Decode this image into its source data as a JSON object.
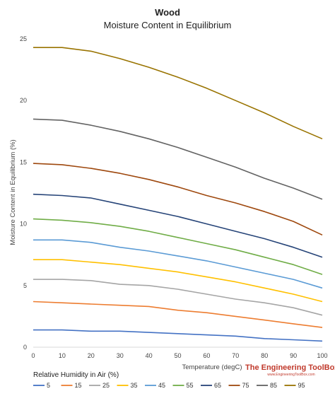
{
  "chart_data": {
    "type": "line",
    "title": "Wood",
    "subtitle": "Moisture Content in Equilibrium",
    "xlabel": "Temperature (degC)",
    "ylabel": "Moisture Content in Equilibrium (%)",
    "xlim": [
      0,
      100
    ],
    "ylim": [
      0,
      25
    ],
    "xticks": [
      0,
      10,
      20,
      30,
      40,
      50,
      60,
      70,
      80,
      90,
      100
    ],
    "yticks": [
      0,
      5,
      10,
      15,
      20,
      25
    ],
    "grid": false,
    "legend_title": "Relative Humidity in Air (%)",
    "legend_position": "bottom",
    "x": [
      0,
      10,
      20,
      30,
      40,
      50,
      60,
      70,
      80,
      90,
      100
    ],
    "series": [
      {
        "name": "5",
        "color": "#4472c4",
        "values": [
          1.4,
          1.4,
          1.3,
          1.3,
          1.2,
          1.1,
          1.0,
          0.9,
          0.7,
          0.6,
          0.5
        ]
      },
      {
        "name": "15",
        "color": "#ed7d31",
        "values": [
          3.7,
          3.6,
          3.5,
          3.4,
          3.3,
          3.0,
          2.8,
          2.5,
          2.2,
          1.9,
          1.6
        ]
      },
      {
        "name": "25",
        "color": "#a5a5a5",
        "values": [
          5.5,
          5.5,
          5.4,
          5.1,
          5.0,
          4.7,
          4.3,
          3.9,
          3.6,
          3.2,
          2.6
        ]
      },
      {
        "name": "35",
        "color": "#ffc000",
        "values": [
          7.1,
          7.1,
          6.9,
          6.7,
          6.4,
          6.1,
          5.7,
          5.3,
          4.8,
          4.3,
          3.7
        ]
      },
      {
        "name": "45",
        "color": "#5b9bd5",
        "values": [
          8.7,
          8.7,
          8.5,
          8.1,
          7.8,
          7.4,
          7.0,
          6.5,
          6.0,
          5.5,
          4.8
        ]
      },
      {
        "name": "55",
        "color": "#70ad47",
        "values": [
          10.4,
          10.3,
          10.1,
          9.8,
          9.4,
          8.9,
          8.4,
          7.9,
          7.3,
          6.7,
          5.9
        ]
      },
      {
        "name": "65",
        "color": "#264478",
        "values": [
          12.4,
          12.3,
          12.1,
          11.6,
          11.1,
          10.6,
          10.0,
          9.4,
          8.8,
          8.1,
          7.3
        ]
      },
      {
        "name": "75",
        "color": "#9e480e",
        "values": [
          14.9,
          14.8,
          14.5,
          14.1,
          13.6,
          13.0,
          12.3,
          11.7,
          11.0,
          10.2,
          9.1
        ]
      },
      {
        "name": "85",
        "color": "#636363",
        "values": [
          18.5,
          18.4,
          18.0,
          17.5,
          16.9,
          16.2,
          15.4,
          14.6,
          13.7,
          12.9,
          12.0
        ]
      },
      {
        "name": "95",
        "color": "#997300",
        "values": [
          24.3,
          24.3,
          24.0,
          23.4,
          22.7,
          21.9,
          21.0,
          20.0,
          19.0,
          17.9,
          16.9
        ]
      }
    ]
  },
  "logo": {
    "main": "The Engineering ToolBox",
    "sub": "www.EngineeringToolBox.com"
  }
}
